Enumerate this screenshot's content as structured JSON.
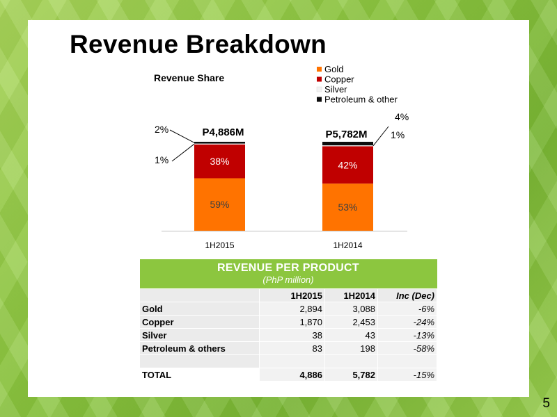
{
  "slide": {
    "title": "Revenue Breakdown",
    "page_number": "5"
  },
  "colors": {
    "gold": "#ff7300",
    "copper": "#c00000",
    "silver": "#f2f2f2",
    "petroleum": "#0d0d0d",
    "table_header": "#8cc63f"
  },
  "chart_data": {
    "type": "bar",
    "stacked": true,
    "title": "Revenue Share",
    "categories": [
      "1H2015",
      "1H2014"
    ],
    "totals": [
      "P4,886M",
      "P5,782M"
    ],
    "series": [
      {
        "name": "Gold",
        "values": [
          59,
          53
        ],
        "labels": [
          "59%",
          "53%"
        ]
      },
      {
        "name": "Copper",
        "values": [
          38,
          42
        ],
        "labels": [
          "38%",
          "42%"
        ]
      },
      {
        "name": "Silver",
        "values": [
          1,
          1
        ],
        "labels": [
          "1%",
          "1%"
        ]
      },
      {
        "name": "Petroleum & other",
        "values": [
          2,
          4
        ],
        "labels": [
          "2%",
          "4%"
        ]
      }
    ],
    "ylim": [
      0,
      100
    ],
    "legend": "top-right",
    "grid": false
  },
  "table": {
    "title": "REVENUE PER PRODUCT",
    "subtitle": "(PhP million)",
    "columns": [
      "",
      "1H2015",
      "1H2014",
      "Inc (Dec)"
    ],
    "rows": [
      [
        "Gold",
        "2,894",
        "3,088",
        "-6%"
      ],
      [
        "Copper",
        "1,870",
        "2,453",
        "-24%"
      ],
      [
        "Silver",
        "38",
        "43",
        "-13%"
      ],
      [
        "Petroleum  & others",
        "83",
        "198",
        "-58%"
      ],
      [
        "",
        "",
        "",
        ""
      ]
    ],
    "total": [
      "TOTAL",
      "4,886",
      "5,782",
      "-15%"
    ]
  }
}
